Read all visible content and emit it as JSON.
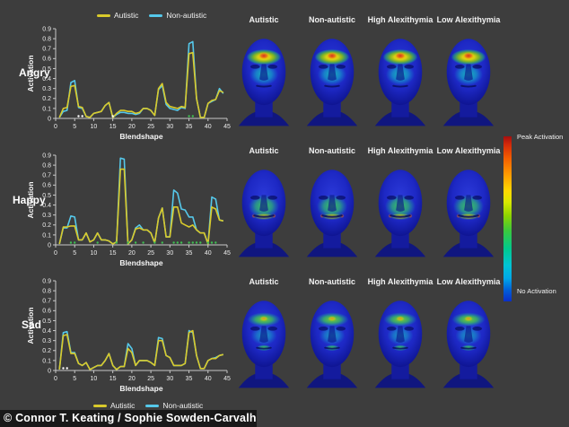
{
  "figure": {
    "background": "#3d3d3d",
    "row_labels": [
      "Angry",
      "Happy",
      "Sad"
    ],
    "face_columns": [
      "Autistic",
      "Non-autistic",
      "High Alexithymia",
      "Low Alexithymia"
    ],
    "face_rows": [
      {
        "emotion": "Angry",
        "pattern": "angry"
      },
      {
        "emotion": "Happy",
        "pattern": "happy"
      },
      {
        "emotion": "Sad",
        "pattern": "sad"
      }
    ],
    "legend": {
      "autistic_label": "Autistic",
      "non_autistic_label": "Non-autistic"
    },
    "colorbar": {
      "top_label": "Peak Activation",
      "bottom_label": "No Activation"
    },
    "copyright": "© Connor T. Keating / Sophie Sowden-Carvalho",
    "colors": {
      "autistic": "#d9ca2b",
      "non_autistic": "#55c8ea",
      "marker_green": "#3fbf52",
      "marker_white": "#ffffff",
      "axis": "#c8c8c8"
    }
  },
  "chart_data": [
    {
      "type": "line",
      "title": "Angry",
      "xlabel": "Blendshape",
      "ylabel": "Activation",
      "xlim": [
        0,
        45
      ],
      "ylim": [
        0,
        0.9
      ],
      "legend_position": "top",
      "x": [
        1,
        2,
        3,
        4,
        5,
        6,
        7,
        8,
        9,
        10,
        11,
        12,
        13,
        14,
        15,
        16,
        17,
        18,
        19,
        20,
        21,
        22,
        23,
        24,
        25,
        26,
        27,
        28,
        29,
        30,
        31,
        32,
        33,
        34,
        35,
        36,
        37,
        38,
        39,
        40,
        41,
        42,
        43,
        44
      ],
      "series": [
        {
          "name": "Autistic",
          "values": [
            0.01,
            0.1,
            0.11,
            0.32,
            0.33,
            0.12,
            0.11,
            0.02,
            0.01,
            0.05,
            0.06,
            0.07,
            0.13,
            0.16,
            0.01,
            0.05,
            0.08,
            0.08,
            0.07,
            0.07,
            0.05,
            0.06,
            0.1,
            0.1,
            0.08,
            0.03,
            0.3,
            0.35,
            0.16,
            0.12,
            0.11,
            0.1,
            0.12,
            0.11,
            0.65,
            0.66,
            0.2,
            0.01,
            0.01,
            0.15,
            0.18,
            0.19,
            0.28,
            0.26
          ]
        },
        {
          "name": "Non-autistic",
          "values": [
            0.01,
            0.07,
            0.08,
            0.36,
            0.38,
            0.11,
            0.1,
            0.02,
            0.01,
            0.05,
            0.06,
            0.07,
            0.13,
            0.16,
            0.01,
            0.04,
            0.06,
            0.06,
            0.05,
            0.05,
            0.04,
            0.05,
            0.1,
            0.1,
            0.08,
            0.03,
            0.29,
            0.33,
            0.14,
            0.1,
            0.09,
            0.08,
            0.11,
            0.1,
            0.75,
            0.77,
            0.2,
            0.01,
            0.01,
            0.15,
            0.17,
            0.19,
            0.3,
            0.25
          ]
        }
      ],
      "sig_markers": {
        "white": [
          6,
          7,
          15
        ],
        "green": [
          35,
          36
        ]
      }
    },
    {
      "type": "line",
      "title": "Happy",
      "xlabel": "Blendshape",
      "ylabel": "Activation",
      "xlim": [
        0,
        45
      ],
      "ylim": [
        0,
        0.9
      ],
      "legend_position": "none",
      "x": [
        1,
        2,
        3,
        4,
        5,
        6,
        7,
        8,
        9,
        10,
        11,
        12,
        13,
        14,
        15,
        16,
        17,
        18,
        19,
        20,
        21,
        22,
        23,
        24,
        25,
        26,
        27,
        28,
        29,
        30,
        31,
        32,
        33,
        34,
        35,
        36,
        37,
        38,
        39,
        40,
        41,
        42,
        43,
        44
      ],
      "series": [
        {
          "name": "Autistic",
          "values": [
            0.01,
            0.18,
            0.18,
            0.19,
            0.19,
            0.05,
            0.05,
            0.12,
            0.03,
            0.05,
            0.12,
            0.05,
            0.05,
            0.04,
            0.01,
            0.03,
            0.76,
            0.76,
            0.01,
            0.05,
            0.16,
            0.17,
            0.15,
            0.15,
            0.12,
            0.02,
            0.27,
            0.37,
            0.08,
            0.08,
            0.38,
            0.38,
            0.22,
            0.2,
            0.18,
            0.2,
            0.15,
            0.12,
            0.12,
            0.01,
            0.38,
            0.36,
            0.25,
            0.24
          ]
        },
        {
          "name": "Non-autistic",
          "values": [
            0.01,
            0.17,
            0.17,
            0.29,
            0.28,
            0.05,
            0.05,
            0.12,
            0.03,
            0.05,
            0.12,
            0.05,
            0.05,
            0.04,
            0.01,
            0.03,
            0.87,
            0.86,
            0.01,
            0.05,
            0.17,
            0.2,
            0.15,
            0.15,
            0.12,
            0.02,
            0.27,
            0.37,
            0.08,
            0.08,
            0.55,
            0.52,
            0.36,
            0.35,
            0.28,
            0.28,
            0.15,
            0.12,
            0.12,
            0.01,
            0.48,
            0.46,
            0.25,
            0.24
          ]
        }
      ],
      "sig_markers": {
        "white": [],
        "green": [
          4,
          5,
          11,
          16,
          19,
          21,
          23,
          26,
          28,
          31,
          32,
          33,
          35,
          36,
          37,
          38,
          40,
          41,
          42
        ]
      }
    },
    {
      "type": "line",
      "title": "Sad",
      "xlabel": "Blendshape",
      "ylabel": "Activation",
      "xlim": [
        0,
        45
      ],
      "ylim": [
        0,
        0.9
      ],
      "legend_position": "bottom",
      "x": [
        1,
        2,
        3,
        4,
        5,
        6,
        7,
        8,
        9,
        10,
        11,
        12,
        13,
        14,
        15,
        16,
        17,
        18,
        19,
        20,
        21,
        22,
        23,
        24,
        25,
        26,
        27,
        28,
        29,
        30,
        31,
        32,
        33,
        34,
        35,
        36,
        37,
        38,
        39,
        40,
        41,
        42,
        43,
        44
      ],
      "series": [
        {
          "name": "Autistic",
          "values": [
            0.01,
            0.35,
            0.36,
            0.17,
            0.17,
            0.07,
            0.05,
            0.08,
            0.01,
            0.03,
            0.05,
            0.05,
            0.1,
            0.17,
            0.05,
            0.01,
            0.04,
            0.04,
            0.22,
            0.18,
            0.05,
            0.1,
            0.1,
            0.1,
            0.08,
            0.05,
            0.3,
            0.3,
            0.15,
            0.13,
            0.05,
            0.05,
            0.05,
            0.07,
            0.38,
            0.4,
            0.15,
            0.02,
            0.02,
            0.1,
            0.12,
            0.12,
            0.15,
            0.16
          ]
        },
        {
          "name": "Non-autistic",
          "values": [
            0.01,
            0.38,
            0.39,
            0.18,
            0.18,
            0.07,
            0.05,
            0.08,
            0.01,
            0.03,
            0.05,
            0.05,
            0.1,
            0.17,
            0.05,
            0.01,
            0.04,
            0.04,
            0.27,
            0.22,
            0.05,
            0.1,
            0.1,
            0.1,
            0.08,
            0.05,
            0.33,
            0.32,
            0.15,
            0.13,
            0.05,
            0.05,
            0.05,
            0.07,
            0.4,
            0.38,
            0.15,
            0.02,
            0.02,
            0.1,
            0.12,
            0.13,
            0.15,
            0.16
          ]
        }
      ],
      "sig_markers": {
        "white": [
          2,
          3
        ],
        "green": []
      }
    }
  ]
}
